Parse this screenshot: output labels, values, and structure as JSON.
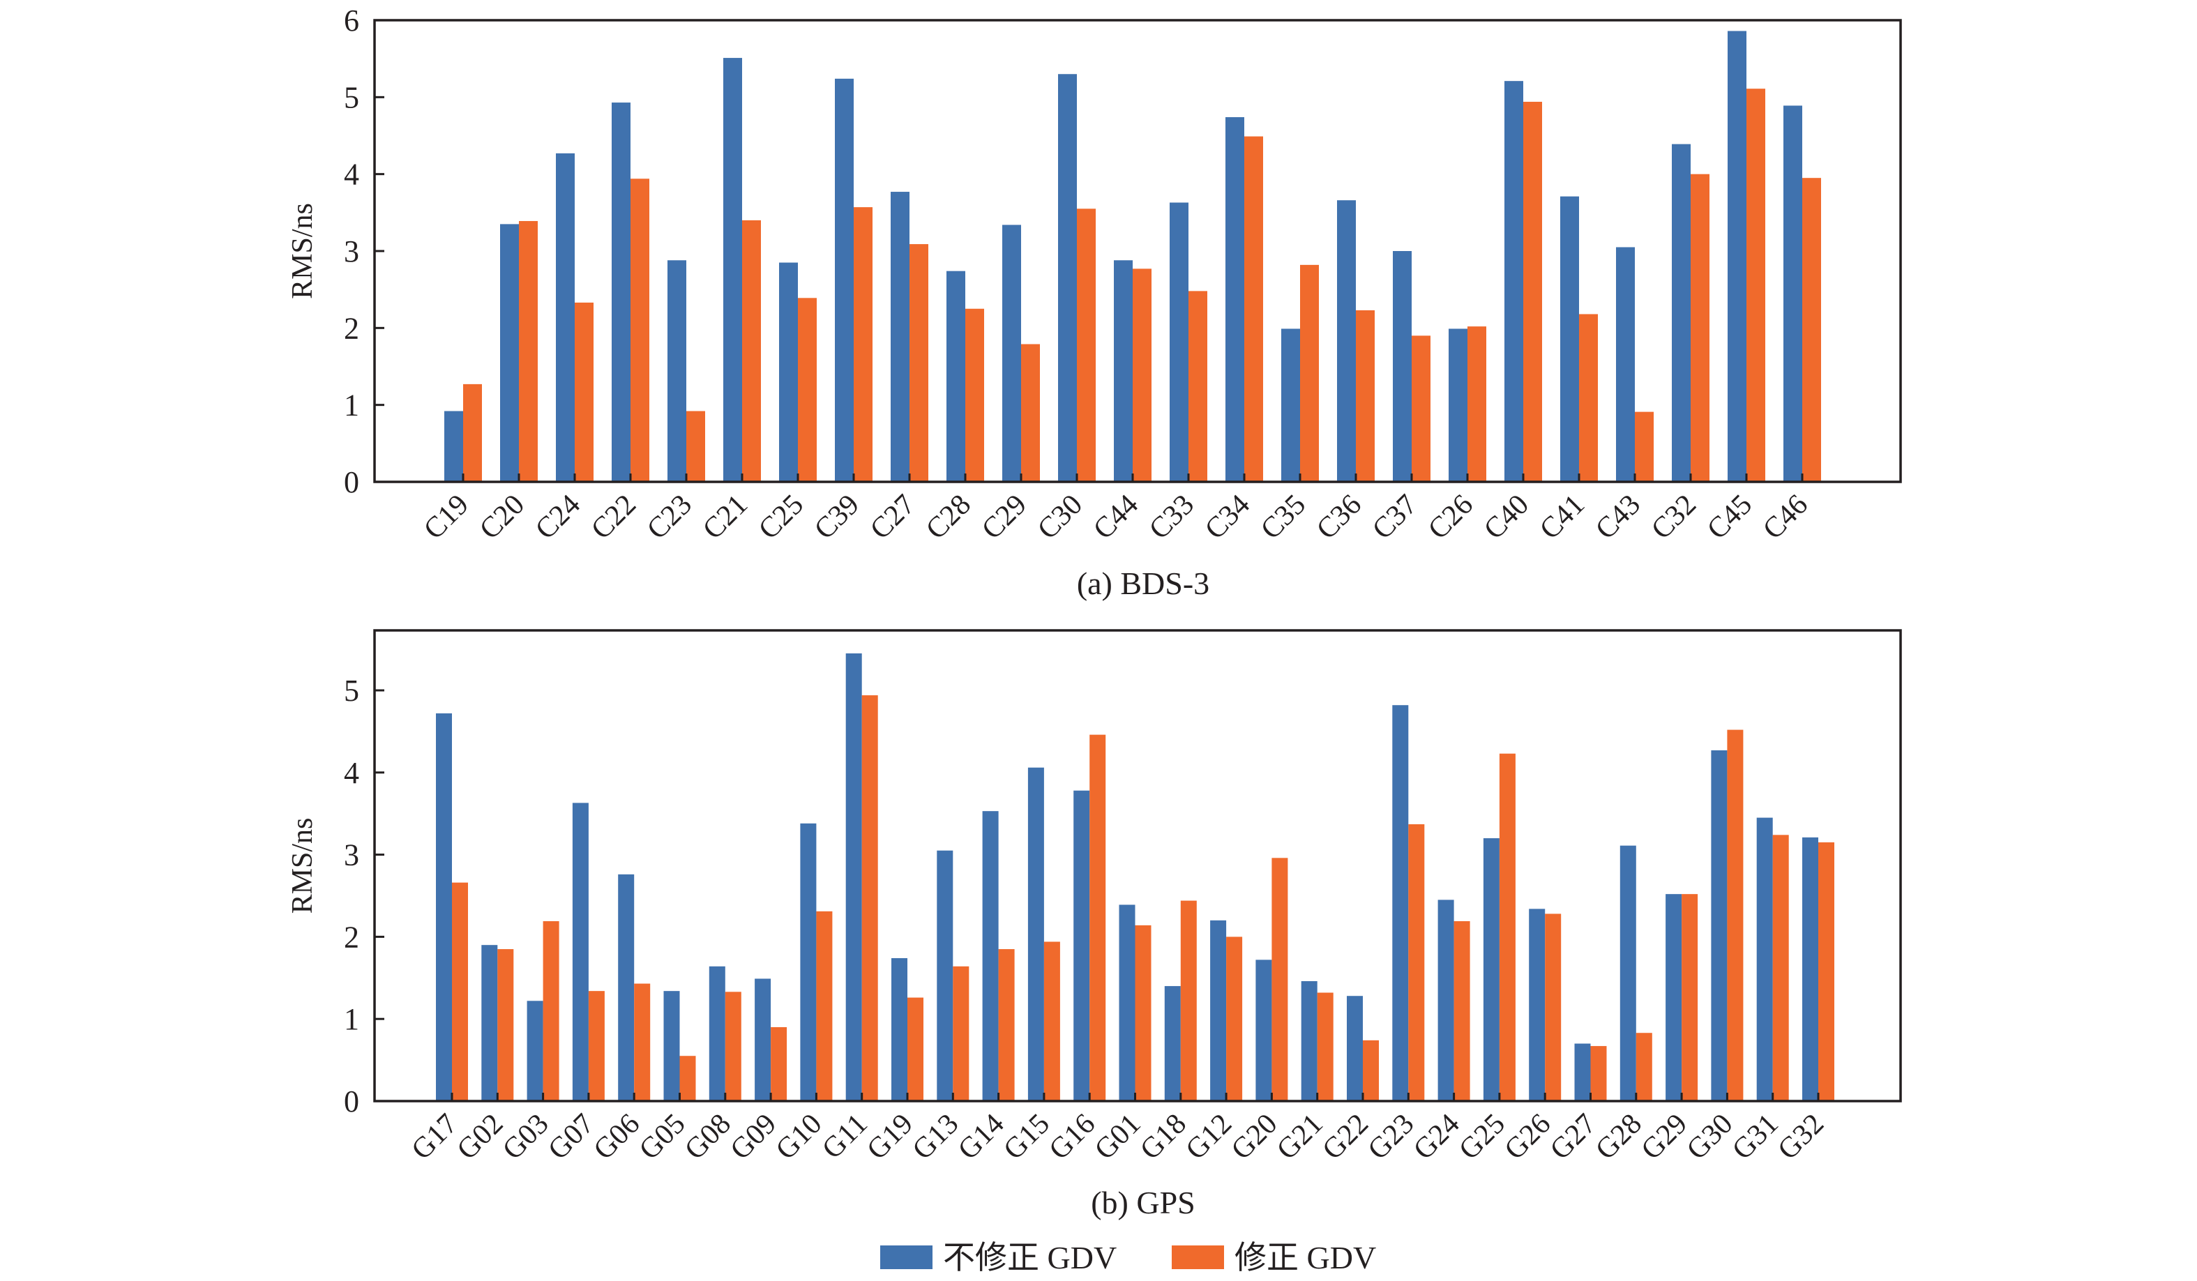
{
  "chart_data": [
    {
      "type": "bar",
      "title": "",
      "caption": "(a) BDS-3",
      "xlabel": "",
      "ylabel": "RMS/ns",
      "ylim": [
        0,
        6
      ],
      "yticks": [
        "0",
        "1",
        "2",
        "3",
        "4",
        "5",
        "6"
      ],
      "grid": false,
      "categories": [
        "C19",
        "C20",
        "C24",
        "C22",
        "C23",
        "C21",
        "C25",
        "C39",
        "C27",
        "C28",
        "C29",
        "C30",
        "C44",
        "C33",
        "C34",
        "C35",
        "C36",
        "C37",
        "C26",
        "C40",
        "C41",
        "C43",
        "C32",
        "C45",
        "C46"
      ],
      "series": [
        {
          "name": "不修正 GDV",
          "color": "#4072ae",
          "values": [
            0.92,
            3.35,
            4.27,
            4.93,
            2.88,
            5.51,
            2.85,
            5.24,
            3.77,
            2.74,
            3.34,
            5.3,
            2.88,
            3.63,
            4.74,
            1.99,
            3.66,
            3.0,
            1.99,
            5.21,
            3.71,
            3.05,
            4.39,
            5.86,
            4.89
          ]
        },
        {
          "name": "修正 GDV",
          "color": "#f06a2c",
          "values": [
            1.27,
            3.39,
            2.33,
            3.94,
            0.92,
            3.4,
            2.39,
            3.57,
            3.09,
            2.25,
            1.79,
            3.55,
            2.77,
            2.48,
            4.49,
            2.82,
            2.23,
            1.9,
            2.02,
            4.94,
            2.18,
            0.91,
            4.0,
            5.11,
            3.95
          ]
        }
      ]
    },
    {
      "type": "bar",
      "title": "",
      "caption": "(b) GPS",
      "xlabel": "",
      "ylabel": "RMS/ns",
      "ylim": [
        0,
        5.73
      ],
      "yticks": [
        "0",
        "1",
        "2",
        "3",
        "4",
        "5"
      ],
      "grid": false,
      "categories": [
        "G17",
        "G02",
        "G03",
        "G07",
        "G06",
        "G05",
        "G08",
        "G09",
        "G10",
        "G11",
        "G19",
        "G13",
        "G14",
        "G15",
        "G16",
        "G01",
        "G18",
        "G12",
        "G20",
        "G21",
        "G22",
        "G23",
        "G24",
        "G25",
        "G26",
        "G27",
        "G28",
        "G29",
        "G30",
        "G31",
        "G32"
      ],
      "series": [
        {
          "name": "不修正 GDV",
          "color": "#4072ae",
          "values": [
            4.72,
            1.9,
            1.22,
            3.63,
            2.76,
            1.34,
            1.64,
            1.49,
            3.38,
            5.45,
            1.74,
            3.05,
            3.53,
            4.06,
            3.78,
            2.39,
            1.4,
            2.2,
            1.72,
            1.46,
            1.28,
            4.82,
            2.45,
            3.2,
            2.34,
            0.7,
            3.11,
            2.52,
            4.27,
            3.45,
            3.21
          ]
        },
        {
          "name": "修正 GDV",
          "color": "#f06a2c",
          "values": [
            2.66,
            1.85,
            2.19,
            1.34,
            1.43,
            0.55,
            1.33,
            0.9,
            2.31,
            4.94,
            1.26,
            1.64,
            1.85,
            1.94,
            4.46,
            2.14,
            2.44,
            2.0,
            2.96,
            1.32,
            0.74,
            3.37,
            2.19,
            4.23,
            2.28,
            0.67,
            0.83,
            2.52,
            4.52,
            3.24,
            3.15
          ]
        }
      ]
    }
  ],
  "legend": {
    "placement": "bottom-center",
    "items": [
      {
        "label": "不修正 GDV",
        "color": "#4072ae"
      },
      {
        "label": "修正 GDV",
        "color": "#f06a2c"
      }
    ]
  }
}
